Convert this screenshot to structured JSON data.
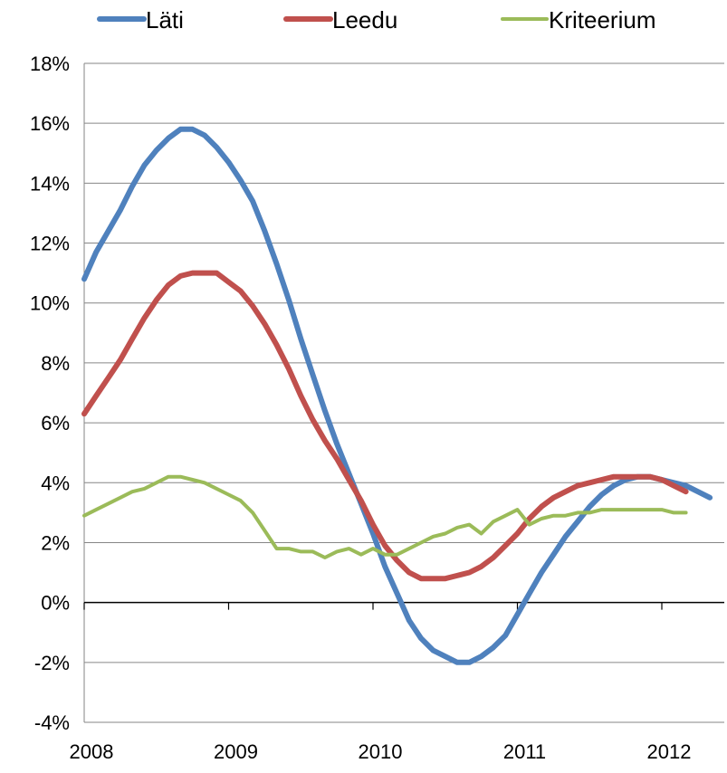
{
  "chart_data": {
    "type": "line",
    "title": "",
    "xlabel": "",
    "ylabel": "",
    "x_range": [
      2008,
      2012.45
    ],
    "ylim": [
      -0.04,
      0.18
    ],
    "x_tick_labels": [
      "2008",
      "2009",
      "2010",
      "2011",
      "2012"
    ],
    "y_tick_labels": [
      "-4%",
      "-2%",
      "0%",
      "2%",
      "4%",
      "6%",
      "8%",
      "10%",
      "12%",
      "14%",
      "16%",
      "18%"
    ],
    "grid": "horizontal",
    "legend_position": "top",
    "series": [
      {
        "name": "Läti",
        "color": "#4F81BD",
        "points": [
          [
            2008.0,
            0.108
          ],
          [
            2008.083,
            0.117
          ],
          [
            2008.167,
            0.124
          ],
          [
            2008.25,
            0.131
          ],
          [
            2008.333,
            0.139
          ],
          [
            2008.417,
            0.146
          ],
          [
            2008.5,
            0.151
          ],
          [
            2008.583,
            0.155
          ],
          [
            2008.667,
            0.158
          ],
          [
            2008.75,
            0.158
          ],
          [
            2008.833,
            0.156
          ],
          [
            2008.917,
            0.152
          ],
          [
            2009.0,
            0.147
          ],
          [
            2009.083,
            0.141
          ],
          [
            2009.167,
            0.134
          ],
          [
            2009.25,
            0.124
          ],
          [
            2009.333,
            0.113
          ],
          [
            2009.417,
            0.101
          ],
          [
            2009.5,
            0.088
          ],
          [
            2009.583,
            0.076
          ],
          [
            2009.667,
            0.064
          ],
          [
            2009.75,
            0.053
          ],
          [
            2009.833,
            0.043
          ],
          [
            2009.917,
            0.033
          ],
          [
            2010.0,
            0.023
          ],
          [
            2010.083,
            0.012
          ],
          [
            2010.167,
            0.003
          ],
          [
            2010.25,
            -0.006
          ],
          [
            2010.333,
            -0.012
          ],
          [
            2010.417,
            -0.016
          ],
          [
            2010.5,
            -0.018
          ],
          [
            2010.583,
            -0.02
          ],
          [
            2010.667,
            -0.02
          ],
          [
            2010.75,
            -0.018
          ],
          [
            2010.833,
            -0.015
          ],
          [
            2010.917,
            -0.011
          ],
          [
            2011.0,
            -0.004
          ],
          [
            2011.083,
            0.003
          ],
          [
            2011.167,
            0.01
          ],
          [
            2011.25,
            0.016
          ],
          [
            2011.333,
            0.022
          ],
          [
            2011.417,
            0.027
          ],
          [
            2011.5,
            0.032
          ],
          [
            2011.583,
            0.036
          ],
          [
            2011.667,
            0.039
          ],
          [
            2011.75,
            0.041
          ],
          [
            2011.833,
            0.042
          ],
          [
            2011.917,
            0.042
          ],
          [
            2012.0,
            0.041
          ],
          [
            2012.083,
            0.04
          ],
          [
            2012.167,
            0.039
          ],
          [
            2012.25,
            0.037
          ],
          [
            2012.333,
            0.035
          ]
        ]
      },
      {
        "name": "Leedu",
        "color": "#C0504D",
        "points": [
          [
            2008.0,
            0.063
          ],
          [
            2008.083,
            0.069
          ],
          [
            2008.167,
            0.075
          ],
          [
            2008.25,
            0.081
          ],
          [
            2008.333,
            0.088
          ],
          [
            2008.417,
            0.095
          ],
          [
            2008.5,
            0.101
          ],
          [
            2008.583,
            0.106
          ],
          [
            2008.667,
            0.109
          ],
          [
            2008.75,
            0.11
          ],
          [
            2008.833,
            0.11
          ],
          [
            2008.917,
            0.11
          ],
          [
            2009.0,
            0.107
          ],
          [
            2009.083,
            0.104
          ],
          [
            2009.167,
            0.099
          ],
          [
            2009.25,
            0.093
          ],
          [
            2009.333,
            0.086
          ],
          [
            2009.417,
            0.078
          ],
          [
            2009.5,
            0.069
          ],
          [
            2009.583,
            0.061
          ],
          [
            2009.667,
            0.054
          ],
          [
            2009.75,
            0.048
          ],
          [
            2009.833,
            0.041
          ],
          [
            2009.917,
            0.034
          ],
          [
            2010.0,
            0.026
          ],
          [
            2010.083,
            0.019
          ],
          [
            2010.167,
            0.014
          ],
          [
            2010.25,
            0.01
          ],
          [
            2010.333,
            0.008
          ],
          [
            2010.417,
            0.008
          ],
          [
            2010.5,
            0.008
          ],
          [
            2010.583,
            0.009
          ],
          [
            2010.667,
            0.01
          ],
          [
            2010.75,
            0.012
          ],
          [
            2010.833,
            0.015
          ],
          [
            2010.917,
            0.019
          ],
          [
            2011.0,
            0.023
          ],
          [
            2011.083,
            0.028
          ],
          [
            2011.167,
            0.032
          ],
          [
            2011.25,
            0.035
          ],
          [
            2011.333,
            0.037
          ],
          [
            2011.417,
            0.039
          ],
          [
            2011.5,
            0.04
          ],
          [
            2011.583,
            0.041
          ],
          [
            2011.667,
            0.042
          ],
          [
            2011.75,
            0.042
          ],
          [
            2011.833,
            0.042
          ],
          [
            2011.917,
            0.042
          ],
          [
            2012.0,
            0.041
          ],
          [
            2012.083,
            0.039
          ],
          [
            2012.167,
            0.037
          ]
        ]
      },
      {
        "name": "Kriteerium",
        "color": "#9BBB59",
        "points": [
          [
            2008.0,
            0.029
          ],
          [
            2008.083,
            0.031
          ],
          [
            2008.167,
            0.033
          ],
          [
            2008.25,
            0.035
          ],
          [
            2008.333,
            0.037
          ],
          [
            2008.417,
            0.038
          ],
          [
            2008.5,
            0.04
          ],
          [
            2008.583,
            0.042
          ],
          [
            2008.667,
            0.042
          ],
          [
            2008.75,
            0.041
          ],
          [
            2008.833,
            0.04
          ],
          [
            2008.917,
            0.038
          ],
          [
            2009.0,
            0.036
          ],
          [
            2009.083,
            0.034
          ],
          [
            2009.167,
            0.03
          ],
          [
            2009.25,
            0.024
          ],
          [
            2009.333,
            0.018
          ],
          [
            2009.417,
            0.018
          ],
          [
            2009.5,
            0.017
          ],
          [
            2009.583,
            0.017
          ],
          [
            2009.667,
            0.015
          ],
          [
            2009.75,
            0.017
          ],
          [
            2009.833,
            0.018
          ],
          [
            2009.917,
            0.016
          ],
          [
            2010.0,
            0.018
          ],
          [
            2010.083,
            0.016
          ],
          [
            2010.167,
            0.016
          ],
          [
            2010.25,
            0.018
          ],
          [
            2010.333,
            0.02
          ],
          [
            2010.417,
            0.022
          ],
          [
            2010.5,
            0.023
          ],
          [
            2010.583,
            0.025
          ],
          [
            2010.667,
            0.026
          ],
          [
            2010.75,
            0.023
          ],
          [
            2010.833,
            0.027
          ],
          [
            2010.917,
            0.029
          ],
          [
            2011.0,
            0.031
          ],
          [
            2011.083,
            0.026
          ],
          [
            2011.167,
            0.028
          ],
          [
            2011.25,
            0.029
          ],
          [
            2011.333,
            0.029
          ],
          [
            2011.417,
            0.03
          ],
          [
            2011.5,
            0.03
          ],
          [
            2011.583,
            0.031
          ],
          [
            2011.667,
            0.031
          ],
          [
            2011.75,
            0.031
          ],
          [
            2011.833,
            0.031
          ],
          [
            2011.917,
            0.031
          ],
          [
            2012.0,
            0.031
          ],
          [
            2012.083,
            0.03
          ],
          [
            2012.167,
            0.03
          ]
        ]
      }
    ]
  }
}
